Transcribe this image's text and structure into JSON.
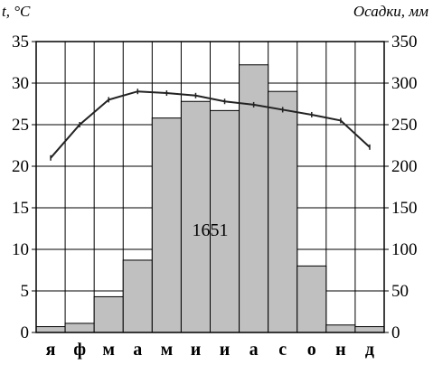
{
  "chart_data": {
    "type": "bar",
    "title": "",
    "categories": [
      "я",
      "ф",
      "м",
      "а",
      "м",
      "и",
      "и",
      "а",
      "с",
      "о",
      "н",
      "д"
    ],
    "left_axis": {
      "label": "t, °C",
      "ylim": [
        0,
        35
      ],
      "ticks": [
        "0",
        "5",
        "10",
        "15",
        "20",
        "25",
        "30",
        "35"
      ]
    },
    "right_axis": {
      "label": "Осадки, мм",
      "ylim": [
        0,
        350
      ],
      "ticks": [
        "0",
        "50",
        "100",
        "150",
        "200",
        "250",
        "300",
        "350"
      ]
    },
    "series": [
      {
        "type": "bar",
        "axis": "right",
        "values": [
          7,
          11,
          43,
          87,
          258,
          278,
          267,
          322,
          290,
          80,
          9,
          7
        ]
      },
      {
        "type": "line",
        "axis": "left",
        "values": [
          21,
          25,
          28,
          29,
          28.8,
          28.5,
          27.8,
          27.4,
          26.8,
          26.2,
          25.5,
          22.3
        ]
      }
    ],
    "annotation": "1651",
    "grid": true,
    "colors": {
      "bar_fill": "#c0c0c0",
      "bar_stroke": "#000000",
      "line": "#222222",
      "grid": "#000000"
    }
  }
}
